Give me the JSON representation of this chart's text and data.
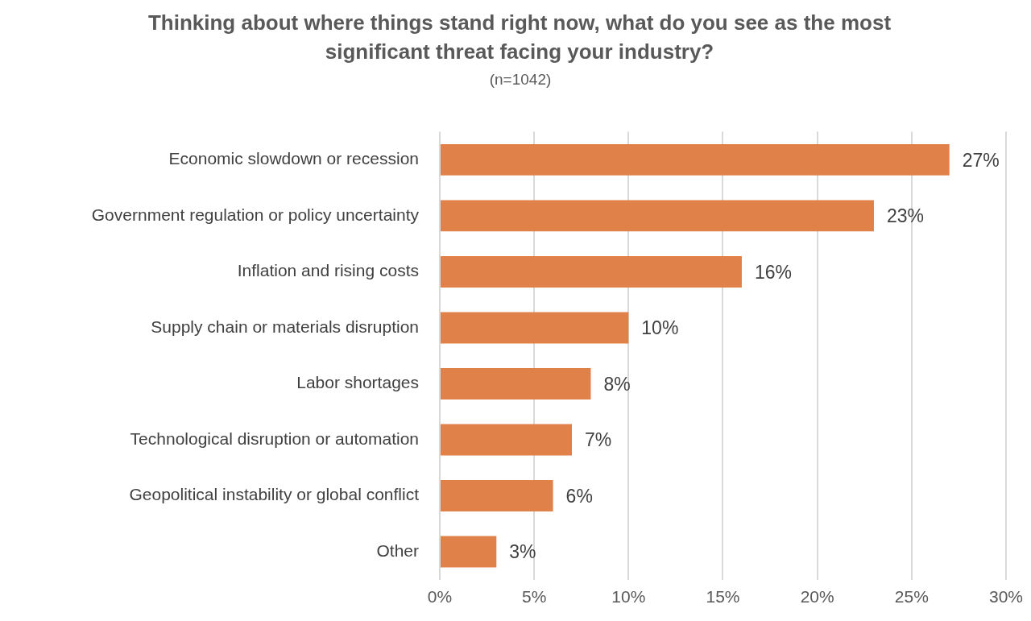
{
  "chart_data": {
    "type": "bar",
    "orientation": "horizontal",
    "title": "Thinking about where things stand right now, what do you see as the most significant threat facing your industry?",
    "subtitle": "(n=1042)",
    "categories": [
      "Economic slowdown or recession",
      "Government regulation or policy uncertainty",
      "Inflation and rising costs",
      "Supply chain or materials disruption",
      "Labor shortages",
      "Technological disruption or automation",
      "Geopolitical instability or global conflict",
      "Other"
    ],
    "values": [
      27,
      23,
      16,
      10,
      8,
      7,
      6,
      3
    ],
    "value_labels": [
      "27%",
      "23%",
      "16%",
      "10%",
      "8%",
      "7%",
      "6%",
      "3%"
    ],
    "color": "#df8149",
    "xlim": [
      0,
      30
    ],
    "xticks": [
      {
        "value": 0,
        "label": "0%"
      },
      {
        "value": 5,
        "label": "5%"
      },
      {
        "value": 10,
        "label": "10%"
      },
      {
        "value": 15,
        "label": "15%"
      },
      {
        "value": 20,
        "label": "20%"
      },
      {
        "value": 25,
        "label": "25%"
      },
      {
        "value": 30,
        "label": "30%"
      }
    ],
    "grid": "x",
    "legend": false
  }
}
